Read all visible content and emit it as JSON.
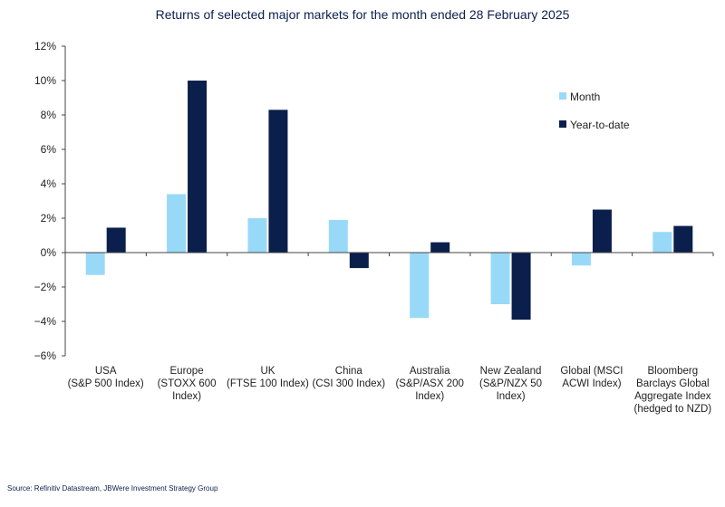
{
  "chart_data": {
    "type": "bar",
    "title": "Returns of selected major markets for the month ended 28 February 2025",
    "xlabel": "",
    "ylabel": "",
    "ylim": [
      -6,
      12
    ],
    "yticks": [
      12,
      10,
      8,
      6,
      4,
      2,
      0,
      -2,
      -4,
      -6
    ],
    "ytick_labels": [
      "12%",
      "10%",
      "8%",
      "6%",
      "4%",
      "2%",
      "0%",
      "−2%",
      "−4%",
      "−6%"
    ],
    "categories": [
      [
        "USA",
        "(S&P 500 Index)"
      ],
      [
        "Europe",
        "(STOXX 600",
        "Index)"
      ],
      [
        "UK",
        "(FTSE 100 Index)"
      ],
      [
        "China",
        "(CSI 300 Index)"
      ],
      [
        "Australia",
        "(S&P/ASX 200",
        "Index)"
      ],
      [
        "New Zealand",
        "(S&P/NZX 50",
        "Index)"
      ],
      [
        "Global (MSCI",
        "ACWI Index)"
      ],
      [
        "Bloomberg",
        "Barclays Global",
        "Aggregate Index",
        "(hedged to NZD)"
      ]
    ],
    "series": [
      {
        "name": "Month",
        "color": "#99d9f8",
        "values": [
          -1.3,
          3.4,
          2.0,
          1.9,
          -3.8,
          -3.0,
          -0.75,
          1.2
        ]
      },
      {
        "name": "Year-to-date",
        "color": "#0b1f4d",
        "values": [
          1.45,
          10.0,
          8.3,
          -0.9,
          0.6,
          -3.9,
          2.5,
          1.55
        ]
      }
    ],
    "legend_position": "top-right",
    "grid": false
  },
  "source_note": "Source: Refinitiv Datastream, JBWere Investment Strategy Group"
}
